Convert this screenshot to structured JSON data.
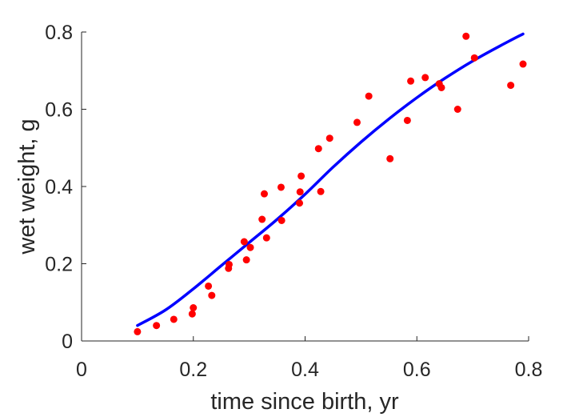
{
  "chart_data": {
    "type": "scatter",
    "xlabel": "time since birth, yr",
    "ylabel": "wet weight, g",
    "xlim": [
      0,
      0.8
    ],
    "ylim": [
      0,
      0.8
    ],
    "xticks": [
      "0",
      "0.2",
      "0.4",
      "0.6",
      "0.8"
    ],
    "yticks": [
      "0",
      "0.2",
      "0.4",
      "0.6",
      "0.8"
    ],
    "grid": false,
    "series": [
      {
        "kind": "points",
        "color": "#ff0000",
        "x": [
          0.1,
          0.134,
          0.165,
          0.198,
          0.2,
          0.227,
          0.233,
          0.263,
          0.264,
          0.291,
          0.295,
          0.302,
          0.323,
          0.327,
          0.331,
          0.357,
          0.358,
          0.39,
          0.391,
          0.393,
          0.424,
          0.428,
          0.444,
          0.493,
          0.514,
          0.552,
          0.583,
          0.589,
          0.615,
          0.64,
          0.644,
          0.673,
          0.688,
          0.703,
          0.768,
          0.79
        ],
        "y": [
          0.024,
          0.04,
          0.056,
          0.07,
          0.086,
          0.142,
          0.118,
          0.188,
          0.198,
          0.257,
          0.21,
          0.242,
          0.315,
          0.381,
          0.267,
          0.398,
          0.312,
          0.357,
          0.386,
          0.427,
          0.498,
          0.387,
          0.525,
          0.566,
          0.634,
          0.472,
          0.571,
          0.673,
          0.682,
          0.666,
          0.656,
          0.6,
          0.789,
          0.733,
          0.662,
          0.717
        ]
      },
      {
        "kind": "line",
        "color": "#0000ff",
        "x": [
          0.1,
          0.15,
          0.2,
          0.25,
          0.3,
          0.35,
          0.4,
          0.45,
          0.5,
          0.55,
          0.6,
          0.65,
          0.7,
          0.75,
          0.79
        ],
        "y": [
          0.04,
          0.08,
          0.135,
          0.195,
          0.255,
          0.315,
          0.38,
          0.45,
          0.515,
          0.575,
          0.63,
          0.68,
          0.725,
          0.765,
          0.795
        ]
      }
    ]
  }
}
